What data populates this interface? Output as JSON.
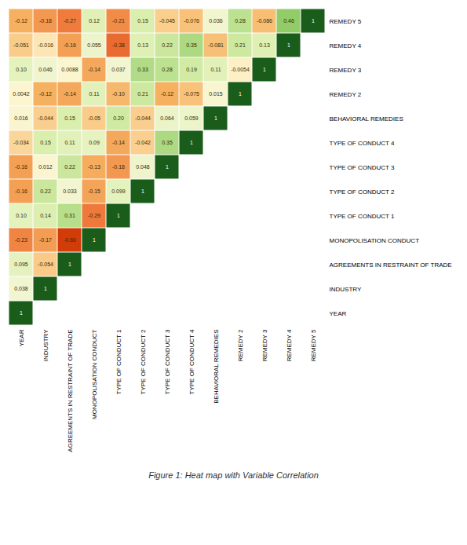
{
  "chart_data": {
    "type": "heatmap",
    "title": "Figure 1: Heat map with Variable Correlation",
    "categories": [
      "YEAR",
      "INDUSTRY",
      "AGREEMENTS IN RESTRAINT OF TRADE",
      "MONOPOLISATION CONDUCT",
      "TYPE OF CONDUCT 1",
      "TYPE OF CONDUCT 2",
      "TYPE OF CONDUCT 3",
      "TYPE OF CONDUCT 4",
      "BEHAVIORAL REMEDIES",
      "REMEDY 2",
      "REMEDY 3",
      "REMEDY 4",
      "REMEDY 5"
    ],
    "y_categories": [
      "REMEDY 5",
      "REMEDY 4",
      "REMEDY 3",
      "REMEDY 2",
      "BEHAVIORAL REMEDIES",
      "TYPE OF CONDUCT 4",
      "TYPE OF CONDUCT 3",
      "TYPE OF CONDUCT 2",
      "TYPE OF CONDUCT 1",
      "MONOPOLISATION CONDUCT",
      "AGREEMENTS IN RESTRAINT OF TRADE",
      "INDUSTRY",
      "YEAR"
    ],
    "values": [
      [
        -0.12,
        -0.18,
        -0.27,
        0.12,
        -0.21,
        0.15,
        -0.045,
        -0.076,
        0.036,
        0.28,
        -0.086,
        0.46,
        1
      ],
      [
        -0.051,
        -0.016,
        -0.16,
        0.055,
        -0.38,
        0.13,
        0.22,
        0.35,
        -0.081,
        0.21,
        0.13,
        1
      ],
      [
        0.1,
        0.046,
        0.0088,
        -0.14,
        0.037,
        0.33,
        0.28,
        0.19,
        0.11,
        -0.0054,
        1
      ],
      [
        0.0042,
        -0.12,
        -0.14,
        0.11,
        -0.1,
        0.21,
        -0.12,
        -0.075,
        0.015,
        1
      ],
      [
        0.016,
        -0.044,
        0.15,
        -0.05,
        0.2,
        -0.044,
        0.064,
        0.059,
        1
      ],
      [
        -0.034,
        0.15,
        0.11,
        0.09,
        -0.14,
        -0.042,
        0.35,
        1
      ],
      [
        -0.16,
        0.012,
        0.22,
        -0.13,
        -0.18,
        0.048,
        1
      ],
      [
        -0.16,
        0.22,
        0.033,
        -0.15,
        0.099,
        1
      ],
      [
        0.1,
        0.14,
        0.31,
        -0.29,
        1
      ],
      [
        -0.23,
        -0.17,
        -0.6,
        1
      ],
      [
        0.095,
        -0.054,
        1
      ],
      [
        0.038,
        1
      ],
      [
        1
      ]
    ],
    "value_labels": [
      [
        "-0.12",
        "-0.18",
        "-0.27",
        "0.12",
        "-0.21",
        "0.15",
        "-0.045",
        "-0.076",
        "0.036",
        "0.28",
        "-0.086",
        "0.46",
        "1"
      ],
      [
        "-0.051",
        "-0.016",
        "-0.16",
        "0.055",
        "-0.38",
        "0.13",
        "0.22",
        "0.35",
        "-0.081",
        "0.21",
        "0.13",
        "1"
      ],
      [
        "0.10",
        "0.046",
        "0.0088",
        "-0.14",
        "0.037",
        "0.33",
        "0.28",
        "0.19",
        "0.11",
        "-0.0054",
        "1"
      ],
      [
        "0.0042",
        "-0.12",
        "-0.14",
        "0.11",
        "-0.10",
        "0.21",
        "-0.12",
        "-0.075",
        "0.015",
        "1"
      ],
      [
        "0.016",
        "-0.044",
        "0.15",
        "-0.05",
        "0.20",
        "-0.044",
        "0.064",
        "0.059",
        "1"
      ],
      [
        "-0.034",
        "0.15",
        "0.11",
        "0.09",
        "-0.14",
        "-0.042",
        "0.35",
        "1"
      ],
      [
        "-0.16",
        "0.012",
        "0.22",
        "-0.13",
        "-0.18",
        "0.048",
        "1"
      ],
      [
        "-0.16",
        "0.22",
        "0.033",
        "-0.15",
        "0.099",
        "1"
      ],
      [
        "0.10",
        "0.14",
        "0.31",
        "-0.29",
        "1"
      ],
      [
        "-0.23",
        "-0.17",
        "-0.60",
        "1"
      ],
      [
        "0.095",
        "-0.054",
        "1"
      ],
      [
        "0.038",
        "1"
      ],
      [
        "1"
      ]
    ],
    "data_labels": true,
    "color_range": [
      -1,
      1
    ],
    "colormap": [
      {
        "position": 0.0,
        "color": "#8B0000"
      },
      {
        "position": 0.08,
        "color": "#b22222"
      },
      {
        "position": 0.18,
        "color": "#cc3300"
      },
      {
        "position": 0.28,
        "color": "#e8622a"
      },
      {
        "position": 0.38,
        "color": "#f08040"
      },
      {
        "position": 0.44,
        "color": "#f5b060"
      },
      {
        "position": 0.48,
        "color": "#fad090"
      },
      {
        "position": 0.5,
        "color": "#fef5d0"
      },
      {
        "position": 0.52,
        "color": "#f0f5d0"
      },
      {
        "position": 0.58,
        "color": "#d8eeaa"
      },
      {
        "position": 0.68,
        "color": "#aad880"
      },
      {
        "position": 0.78,
        "color": "#78c050"
      },
      {
        "position": 0.88,
        "color": "#449030"
      },
      {
        "position": 1.0,
        "color": "#1a5c1a"
      }
    ]
  }
}
